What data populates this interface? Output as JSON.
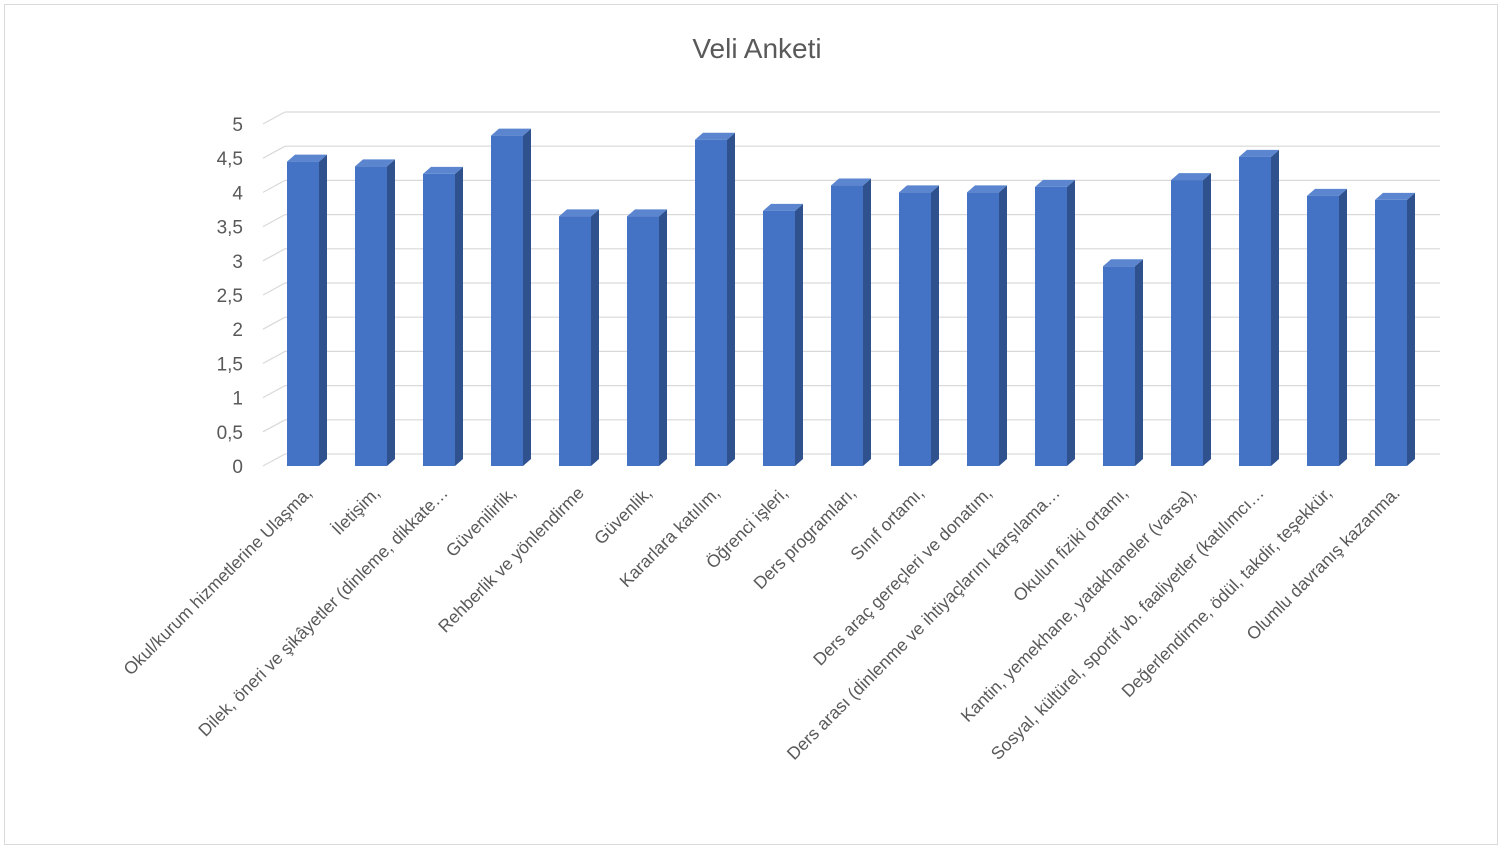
{
  "chart_data": {
    "type": "bar",
    "title": "Veli Anketi",
    "xlabel": "",
    "ylabel": "",
    "ylim": [
      0,
      5
    ],
    "yticks": [
      "0",
      "0,5",
      "1",
      "1,5",
      "2",
      "2,5",
      "3",
      "3,5",
      "4",
      "4,5",
      "5"
    ],
    "grid": true,
    "legend": "none",
    "bar_color": "#4472c4",
    "bar_side_color": "#2f528f",
    "bar_top_color": "#5b86cf",
    "categories": [
      "Okul/kurum hizmetlerine Ulaşma,",
      "İletişim,",
      "Dilek, öneri ve şikâyetler (dinleme, dikkate…",
      "Güvenilirlik,",
      "Rehberlik ve yönlendirme",
      "Güvenlik,",
      "Kararlara katılım,",
      "Öğrenci işleri,",
      "Ders programları,",
      "Sınıf ortamı,",
      "Ders araç gereçleri ve donatım,",
      "Ders arası (dinlenme ve ihtiyaçlarını karşılama…",
      "Okulun fiziki ortamı,",
      "Kantin, yemekhane, yatakhaneler (varsa),",
      "Sosyal, kültürel, sportif vb. faaliyetler (katılımcı…",
      "Değerlendirme, ödül, takdir, teşekkür,",
      "Olumlu davranış kazanma."
    ],
    "values": [
      4.45,
      4.38,
      4.27,
      4.83,
      3.65,
      3.65,
      4.77,
      3.73,
      4.1,
      4.0,
      4.0,
      4.08,
      2.92,
      4.18,
      4.52,
      3.95,
      3.89
    ]
  }
}
